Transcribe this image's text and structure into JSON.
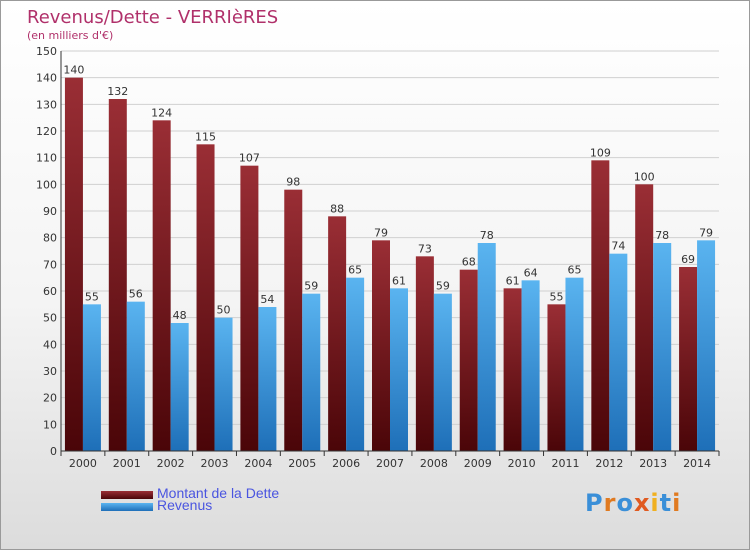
{
  "title": "Revenus/Dette - VERRIèRES",
  "subtitle": "(en milliers d'€)",
  "logo": "Proxiti",
  "colors": {
    "dette": "#7a1a22",
    "revenus": "#3a9be0",
    "axis": "#333333",
    "grid": "#d0d0d0",
    "title": "#b0306a",
    "legend_text": "#4a55e0"
  },
  "chart_data": {
    "type": "bar",
    "categories": [
      "2000",
      "2001",
      "2002",
      "2003",
      "2004",
      "2005",
      "2006",
      "2007",
      "2008",
      "2009",
      "2010",
      "2011",
      "2012",
      "2013",
      "2014"
    ],
    "series": [
      {
        "name": "Montant de la Dette",
        "values": [
          140,
          132,
          124,
          115,
          107,
          98,
          88,
          79,
          73,
          68,
          61,
          55,
          109,
          100,
          69
        ]
      },
      {
        "name": "Revenus",
        "values": [
          55,
          56,
          48,
          50,
          54,
          59,
          65,
          61,
          59,
          78,
          64,
          65,
          74,
          78,
          79
        ]
      }
    ],
    "ylim": [
      0,
      150
    ],
    "yticks": [
      0,
      10,
      20,
      30,
      40,
      50,
      60,
      70,
      80,
      90,
      100,
      110,
      120,
      130,
      140,
      150
    ],
    "grid": true,
    "legend_position": "bottom-left"
  }
}
